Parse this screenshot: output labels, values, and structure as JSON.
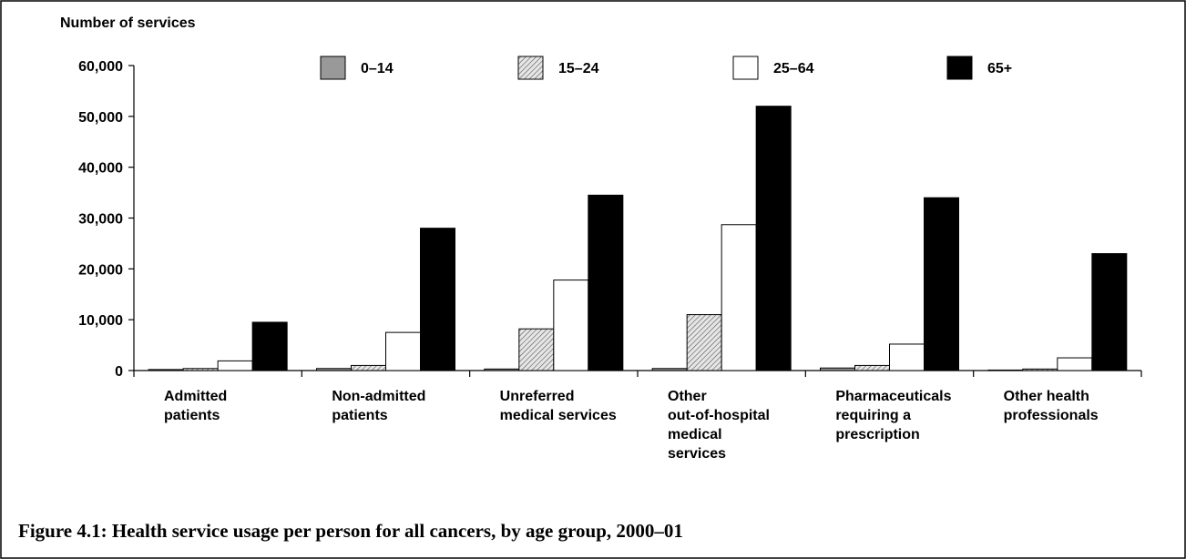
{
  "chart_data": {
    "type": "bar",
    "caption": "Figure 4.1: Health service usage per person for all cancers, by age group, 2000–01",
    "y_label": "Number of services",
    "categories": [
      [
        "Admitted",
        "patients"
      ],
      [
        "Non-admitted",
        "patients"
      ],
      [
        "Unreferred",
        "medical services"
      ],
      [
        "Other",
        "out-of-hospital",
        "medical",
        "services"
      ],
      [
        "Pharmaceuticals",
        "requiring a",
        "prescription"
      ],
      [
        "Other health",
        "professionals"
      ]
    ],
    "series": [
      {
        "name": "0–14",
        "color": "#999999",
        "values": [
          200,
          400,
          300,
          400,
          500,
          100
        ]
      },
      {
        "name": "15–24",
        "color": "#d4d4d4",
        "hatch": true,
        "values": [
          400,
          1000,
          8200,
          11000,
          1000,
          300
        ]
      },
      {
        "name": "25–64",
        "color": "#ffffff",
        "values": [
          1900,
          7500,
          17800,
          28700,
          5200,
          2500
        ]
      },
      {
        "name": "65+",
        "color": "#000000",
        "values": [
          9500,
          28000,
          34500,
          52000,
          34000,
          23000
        ]
      }
    ],
    "ylim": [
      0,
      60000
    ],
    "yticks": [
      0,
      {
        "value": 10000,
        "label": "10,000"
      },
      {
        "value": 20000,
        "label": "20,000"
      },
      {
        "value": 30000,
        "label": "30,000"
      },
      {
        "value": 40000,
        "label": "40,000"
      },
      {
        "value": 50000,
        "label": "50,000"
      },
      {
        "value": 60000,
        "label": "60,000"
      }
    ],
    "grid": false
  }
}
